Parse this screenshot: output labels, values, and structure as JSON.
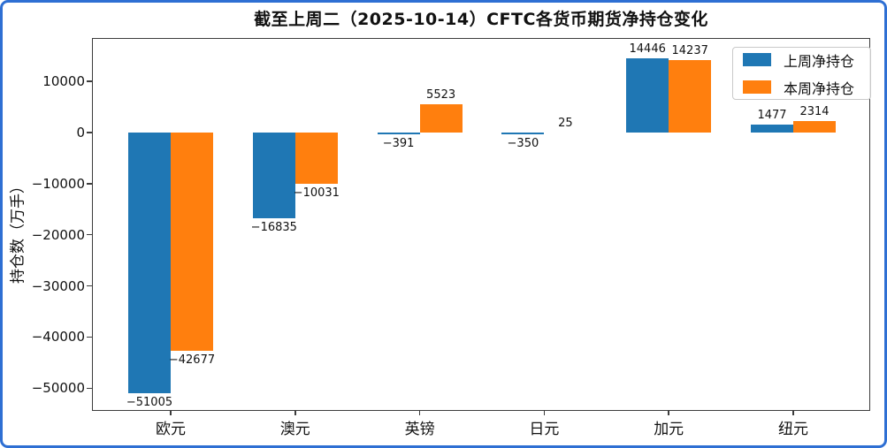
{
  "chart_data": {
    "type": "bar",
    "title": "截至上周二（2025-10-14）CFTC各货币期货净持仓变化",
    "xlabel": "",
    "ylabel": "持仓数（万手）",
    "categories": [
      "欧元",
      "澳元",
      "英镑",
      "日元",
      "加元",
      "纽元"
    ],
    "series": [
      {
        "name": "上周净持仓",
        "color": "#1f77b4",
        "values": [
          -51005,
          -16835,
          -391,
          -350,
          14446,
          1477
        ],
        "labels": [
          "−51005",
          "−16835",
          "−391",
          "−350",
          "14446",
          "1477"
        ]
      },
      {
        "name": "本周净持仓",
        "color": "#ff7f0e",
        "values": [
          -42677,
          -10031,
          5523,
          25,
          14237,
          2314
        ],
        "labels": [
          "−42677",
          "−10031",
          "5523",
          "25",
          "14237",
          "2314"
        ]
      }
    ],
    "yticks": [
      10000,
      0,
      -10000,
      -20000,
      -30000,
      -40000,
      -50000
    ],
    "ytick_labels": [
      "10000",
      "0",
      "−10000",
      "−20000",
      "−30000",
      "−40000",
      "−50000"
    ],
    "ylim": [
      -54450,
      18500
    ],
    "grid": false,
    "legend_position": "upper-right"
  },
  "colors": {
    "frame_border": "#2e6fd3",
    "axis": "#3c3c3c",
    "background": "#ffffff",
    "text": "#111111"
  }
}
